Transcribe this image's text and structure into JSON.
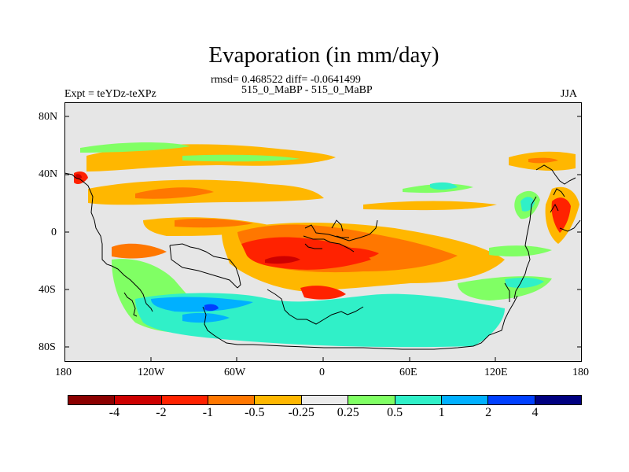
{
  "title": "Evaporation (in mm/day)",
  "stats": "rmsd= 0.468522 diff= -0.0641499",
  "case": "515_0_MaBP - 515_0_MaBP",
  "expt": "Expt = teYDz-teXPz",
  "season": "JJA",
  "axes": {
    "lat_labels": [
      "80N",
      "40N",
      "0",
      "40S",
      "80S"
    ],
    "lon_labels": [
      "180",
      "120W",
      "60W",
      "0",
      "60E",
      "120E",
      "180"
    ]
  },
  "colorbar": {
    "colors": [
      "#8b0000",
      "#cd0000",
      "#ff2200",
      "#ff7700",
      "#ffb700",
      "#ebebeb",
      "#80ff64",
      "#30f0c8",
      "#00b0ff",
      "#0040ff",
      "#000080"
    ],
    "labels": [
      "-4",
      "-2",
      "-1",
      "-0.5",
      "-0.25",
      "0.25",
      "0.5",
      "1",
      "2",
      "4"
    ]
  },
  "map_colors": {
    "background": "#e6e6e6",
    "coast": "#000000"
  }
}
